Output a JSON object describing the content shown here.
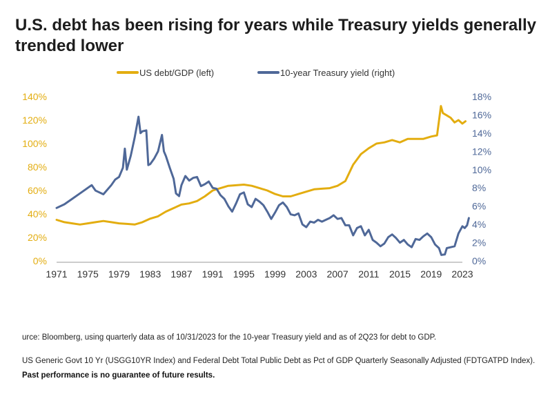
{
  "title": "U.S. debt has been rising for years while Treasury yields generally trended lower",
  "source": "urce: Bloomberg, using quarterly data as of 10/31/2023 for the 10-year Treasury yield and as of 2Q23 for debt to GDP.",
  "note": "US Generic Govt 10 Yr (USGG10YR Index) and Federal Debt Total Public Debt as Pct of GDP Quarterly Seasonally Adjusted (FDTGATPD Index).",
  "disclaimer": "Past performance is no guarantee of future results.",
  "colors": {
    "debt": "#e3ad10",
    "yield": "#4f6898",
    "axis": "#999999",
    "leftTicks": "#e3ad10",
    "rightTicks": "#4f6898"
  },
  "chart_data": {
    "type": "line",
    "grid": false,
    "legend_position": "top-center",
    "x_ticks": [
      "1971",
      "1975",
      "1979",
      "1983",
      "1987",
      "1991",
      "1995",
      "1999",
      "2003",
      "2007",
      "2011",
      "2015",
      "2019",
      "2023"
    ],
    "xlim": [
      1971,
      2023
    ],
    "left_axis": {
      "ticks": [
        "0%",
        "20%",
        "40%",
        "60%",
        "80%",
        "100%",
        "120%",
        "140%"
      ],
      "ylim": [
        0,
        140
      ]
    },
    "right_axis": {
      "ticks": [
        "0%",
        "2%",
        "4%",
        "6%",
        "8%",
        "10%",
        "12%",
        "14%",
        "16%",
        "18%"
      ],
      "ylim": [
        0,
        18
      ]
    },
    "series": [
      {
        "name": "US debt/GDP (left)",
        "axis": "left",
        "points": [
          [
            1971,
            35
          ],
          [
            1972,
            33
          ],
          [
            1973,
            32
          ],
          [
            1974,
            31
          ],
          [
            1975,
            32
          ],
          [
            1976,
            33
          ],
          [
            1977,
            34
          ],
          [
            1978,
            33
          ],
          [
            1979,
            32
          ],
          [
            1980,
            31.5
          ],
          [
            1981,
            31
          ],
          [
            1982,
            33
          ],
          [
            1983,
            36
          ],
          [
            1984,
            38
          ],
          [
            1985,
            42
          ],
          [
            1986,
            45
          ],
          [
            1987,
            48
          ],
          [
            1988,
            49
          ],
          [
            1989,
            51
          ],
          [
            1990,
            55
          ],
          [
            1991,
            60
          ],
          [
            1992,
            62
          ],
          [
            1993,
            64
          ],
          [
            1994,
            64.5
          ],
          [
            1995,
            65
          ],
          [
            1996,
            64
          ],
          [
            1997,
            62
          ],
          [
            1998,
            60
          ],
          [
            1999,
            57
          ],
          [
            2000,
            55
          ],
          [
            2001,
            55
          ],
          [
            2002,
            57
          ],
          [
            2003,
            59
          ],
          [
            2004,
            61
          ],
          [
            2005,
            61.5
          ],
          [
            2006,
            62
          ],
          [
            2007,
            64
          ],
          [
            2008,
            68
          ],
          [
            2009,
            82
          ],
          [
            2010,
            91
          ],
          [
            2011,
            96
          ],
          [
            2012,
            100
          ],
          [
            2013,
            101
          ],
          [
            2014,
            103
          ],
          [
            2015,
            101
          ],
          [
            2016,
            104
          ],
          [
            2017,
            104
          ],
          [
            2018,
            104
          ],
          [
            2019,
            106
          ],
          [
            2019.75,
            107
          ],
          [
            2020.25,
            132
          ],
          [
            2020.5,
            126
          ],
          [
            2021,
            124
          ],
          [
            2021.5,
            122
          ],
          [
            2022,
            118
          ],
          [
            2022.5,
            120
          ],
          [
            2023,
            117
          ],
          [
            2023.4,
            119
          ]
        ]
      },
      {
        "name": "10-year Treasury yield (right)",
        "axis": "right",
        "points": [
          [
            1971,
            5.8
          ],
          [
            1972,
            6.2
          ],
          [
            1973,
            6.8
          ],
          [
            1974,
            7.4
          ],
          [
            1975,
            8.0
          ],
          [
            1975.5,
            8.3
          ],
          [
            1976,
            7.7
          ],
          [
            1977,
            7.3
          ],
          [
            1978,
            8.3
          ],
          [
            1978.5,
            8.9
          ],
          [
            1979,
            9.2
          ],
          [
            1979.5,
            10.2
          ],
          [
            1979.75,
            12.3
          ],
          [
            1980,
            10.0
          ],
          [
            1980.5,
            11.5
          ],
          [
            1981,
            13.5
          ],
          [
            1981.5,
            15.8
          ],
          [
            1981.75,
            14.0
          ],
          [
            1982,
            14.2
          ],
          [
            1982.5,
            14.3
          ],
          [
            1982.75,
            10.5
          ],
          [
            1983,
            10.6
          ],
          [
            1983.5,
            11.2
          ],
          [
            1984,
            12.0
          ],
          [
            1984.5,
            13.8
          ],
          [
            1984.75,
            12.0
          ],
          [
            1985,
            11.5
          ],
          [
            1985.5,
            10.2
          ],
          [
            1986,
            9.0
          ],
          [
            1986.3,
            7.4
          ],
          [
            1986.7,
            7.1
          ],
          [
            1987,
            8.3
          ],
          [
            1987.5,
            9.3
          ],
          [
            1988,
            8.8
          ],
          [
            1988.5,
            9.1
          ],
          [
            1989,
            9.2
          ],
          [
            1989.5,
            8.2
          ],
          [
            1990,
            8.4
          ],
          [
            1990.5,
            8.7
          ],
          [
            1991,
            8.0
          ],
          [
            1991.5,
            7.9
          ],
          [
            1992,
            7.2
          ],
          [
            1992.5,
            6.8
          ],
          [
            1993,
            6.0
          ],
          [
            1993.5,
            5.4
          ],
          [
            1994,
            6.3
          ],
          [
            1994.5,
            7.3
          ],
          [
            1995,
            7.5
          ],
          [
            1995.5,
            6.2
          ],
          [
            1996,
            5.9
          ],
          [
            1996.5,
            6.8
          ],
          [
            1997,
            6.5
          ],
          [
            1997.5,
            6.1
          ],
          [
            1998,
            5.4
          ],
          [
            1998.5,
            4.6
          ],
          [
            1999,
            5.3
          ],
          [
            1999.5,
            6.1
          ],
          [
            2000,
            6.4
          ],
          [
            2000.5,
            5.9
          ],
          [
            2001,
            5.1
          ],
          [
            2001.5,
            5.0
          ],
          [
            2002,
            5.2
          ],
          [
            2002.5,
            4.0
          ],
          [
            2003,
            3.7
          ],
          [
            2003.5,
            4.3
          ],
          [
            2004,
            4.2
          ],
          [
            2004.5,
            4.5
          ],
          [
            2005,
            4.3
          ],
          [
            2005.5,
            4.5
          ],
          [
            2006,
            4.7
          ],
          [
            2006.5,
            5.0
          ],
          [
            2007,
            4.6
          ],
          [
            2007.5,
            4.7
          ],
          [
            2008,
            3.9
          ],
          [
            2008.5,
            3.9
          ],
          [
            2009,
            2.8
          ],
          [
            2009.5,
            3.6
          ],
          [
            2010,
            3.8
          ],
          [
            2010.5,
            2.8
          ],
          [
            2011,
            3.4
          ],
          [
            2011.5,
            2.3
          ],
          [
            2012,
            2.0
          ],
          [
            2012.5,
            1.6
          ],
          [
            2013,
            1.9
          ],
          [
            2013.5,
            2.6
          ],
          [
            2014,
            2.9
          ],
          [
            2014.5,
            2.5
          ],
          [
            2015,
            2.0
          ],
          [
            2015.5,
            2.3
          ],
          [
            2016,
            1.8
          ],
          [
            2016.5,
            1.5
          ],
          [
            2017,
            2.4
          ],
          [
            2017.5,
            2.3
          ],
          [
            2018,
            2.7
          ],
          [
            2018.5,
            3.0
          ],
          [
            2019,
            2.6
          ],
          [
            2019.5,
            1.8
          ],
          [
            2020,
            1.4
          ],
          [
            2020.3,
            0.65
          ],
          [
            2020.75,
            0.7
          ],
          [
            2021,
            1.4
          ],
          [
            2021.5,
            1.5
          ],
          [
            2022,
            1.6
          ],
          [
            2022.5,
            3.0
          ],
          [
            2023,
            3.8
          ],
          [
            2023.3,
            3.6
          ],
          [
            2023.6,
            3.9
          ],
          [
            2023.83,
            4.7
          ]
        ]
      }
    ]
  }
}
